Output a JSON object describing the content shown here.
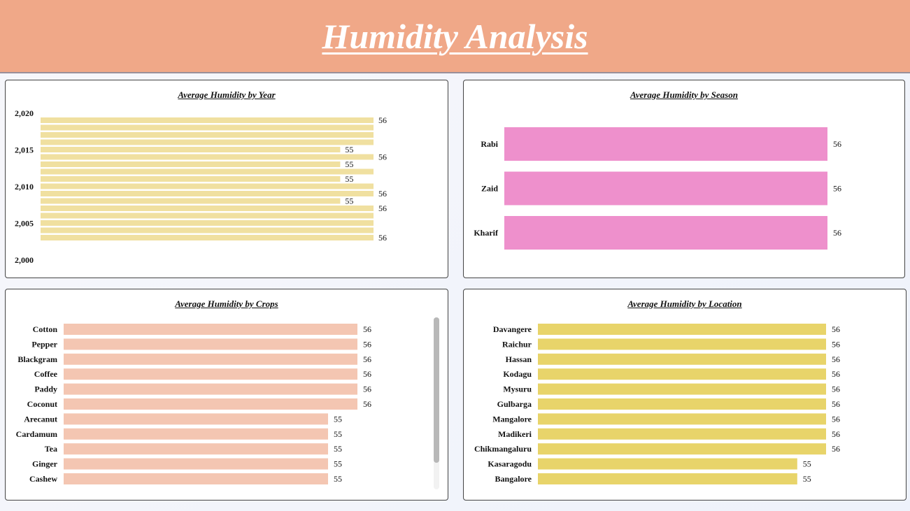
{
  "header": {
    "title": "Humidity Analysis"
  },
  "charts": {
    "year": {
      "title": "Average Humidity by Year",
      "color": "#f0e0a0",
      "y_tick_labels": [
        "2,020",
        "2,015",
        "2,010",
        "2,005",
        "2,000"
      ]
    },
    "season": {
      "title": "Average Humidity by Season",
      "color": "#ee90cc"
    },
    "crops": {
      "title": "Average Humidity by Crops",
      "color": "#f4c6b2"
    },
    "location": {
      "title": "Average Humidity by Location",
      "color": "#e8d46a"
    }
  },
  "chart_data": [
    {
      "type": "bar",
      "orientation": "horizontal",
      "title": "Average Humidity by Year",
      "y_axis": "Year",
      "ylim": [
        2000,
        2021
      ],
      "y_ticks": [
        2020,
        2015,
        2010,
        2005,
        2000
      ],
      "x": [
        2020,
        2019,
        2018,
        2017,
        2016,
        2015,
        2014,
        2013,
        2012,
        2011,
        2010,
        2009,
        2008,
        2007,
        2006,
        2005,
        2004
      ],
      "values": [
        56,
        56,
        56,
        56,
        55,
        56,
        55,
        56,
        55,
        56,
        56,
        55,
        56,
        56,
        56,
        56,
        56
      ],
      "value_labels": [
        "56",
        "",
        "",
        "",
        "55",
        "56",
        "55",
        "",
        "55",
        "",
        "56",
        "55",
        "56",
        "",
        "",
        "",
        "56"
      ]
    },
    {
      "type": "bar",
      "orientation": "horizontal",
      "title": "Average Humidity by Season",
      "categories": [
        "Rabi",
        "Zaid",
        "Kharif"
      ],
      "values": [
        56,
        56,
        56
      ]
    },
    {
      "type": "bar",
      "orientation": "horizontal",
      "title": "Average Humidity by Crops",
      "categories": [
        "Cotton",
        "Pepper",
        "Blackgram",
        "Coffee",
        "Paddy",
        "Coconut",
        "Arecanut",
        "Cardamum",
        "Tea",
        "Ginger",
        "Cashew"
      ],
      "values": [
        56,
        56,
        56,
        56,
        56,
        56,
        55,
        55,
        55,
        55,
        55
      ]
    },
    {
      "type": "bar",
      "orientation": "horizontal",
      "title": "Average Humidity by Location",
      "categories": [
        "Davangere",
        "Raichur",
        "Hassan",
        "Kodagu",
        "Mysuru",
        "Gulbarga",
        "Mangalore",
        "Madikeri",
        "Chikmangaluru",
        "Kasaragodu",
        "Bangalore"
      ],
      "values": [
        56,
        56,
        56,
        56,
        56,
        56,
        56,
        56,
        56,
        55,
        55
      ]
    }
  ]
}
